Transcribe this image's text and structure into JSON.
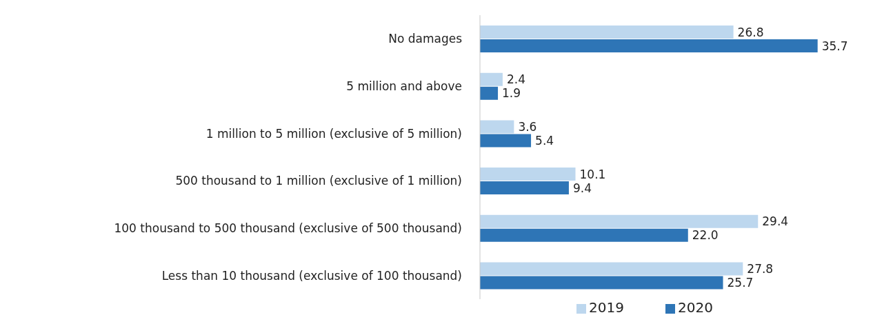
{
  "chart_data": {
    "type": "bar",
    "orientation": "horizontal",
    "categories": [
      "No damages",
      "5 million and above",
      "1 million to 5 million (exclusive of 5 million)",
      "500 thousand to 1 million (exclusive of 1 million)",
      "100 thousand to 500 thousand (exclusive of 500 thousand)",
      "Less than 10 thousand (exclusive of 100 thousand)"
    ],
    "series": [
      {
        "name": "2019",
        "color": "#bdd7ee",
        "values": [
          26.8,
          2.4,
          3.6,
          10.1,
          29.4,
          27.8
        ],
        "value_labels": [
          "26.8",
          "2.4",
          "3.6",
          "10.1",
          "29.4",
          "27.8"
        ]
      },
      {
        "name": "2020",
        "color": "#2e75b6",
        "values": [
          35.7,
          1.9,
          5.4,
          9.4,
          22.0,
          25.7
        ],
        "value_labels": [
          "35.7",
          "1.9",
          "5.4",
          "9.4",
          "22.0",
          "25.7"
        ]
      }
    ],
    "legend": "bottom",
    "tick_labels": "y"
  }
}
